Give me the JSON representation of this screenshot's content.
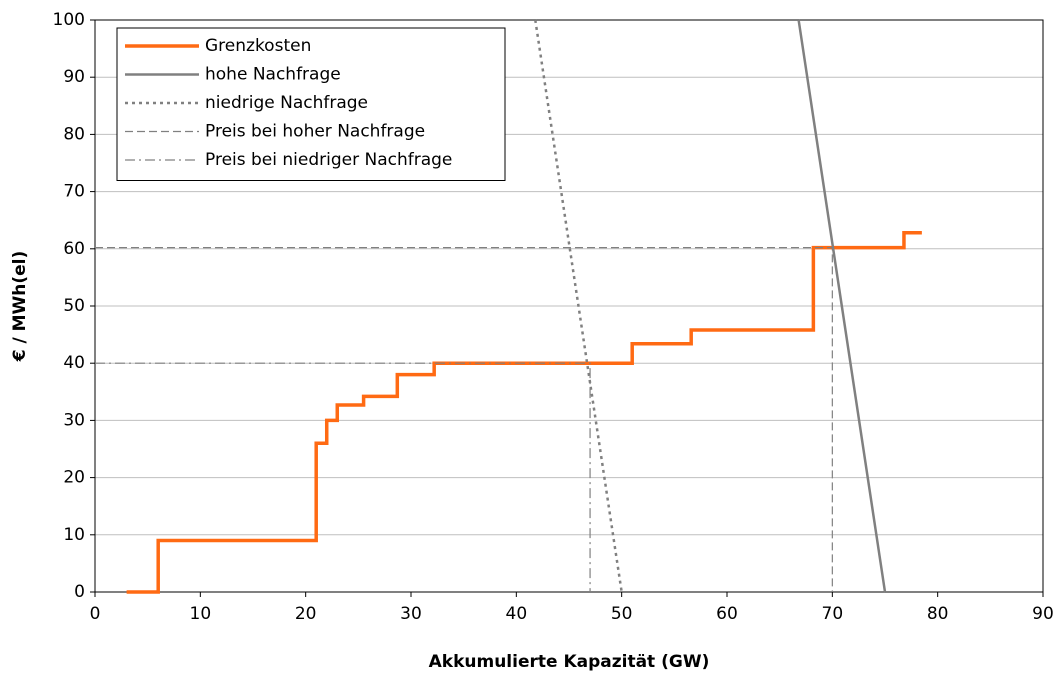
{
  "chart_data": {
    "type": "line",
    "x_label": "Akkumulierte Kapazität (GW)",
    "y_label": "€ / MWh(el)",
    "xlim": [
      0,
      90
    ],
    "xticks": [
      0,
      10,
      20,
      30,
      40,
      50,
      60,
      70,
      80,
      90
    ],
    "ylim": [
      0,
      100
    ],
    "yticks": [
      0,
      10,
      20,
      30,
      40,
      50,
      60,
      70,
      80,
      90,
      100
    ],
    "grid": true,
    "legend": "upper left",
    "series": [
      {
        "name": "Grenzkosten",
        "color": "#ff6a13",
        "style": "solid",
        "width": 3.5,
        "x": [
          3,
          6,
          6,
          21,
          21,
          22,
          22,
          23,
          23,
          25.5,
          25.5,
          28.7,
          28.7,
          32.2,
          32.2,
          51,
          51,
          56.6,
          56.6,
          68.2,
          68.2,
          76.8,
          76.8,
          78.5
        ],
        "values": [
          0,
          0,
          9,
          9,
          26,
          26,
          30,
          30,
          32.7,
          32.7,
          34.2,
          34.2,
          38,
          38,
          40,
          40,
          43.4,
          43.4,
          45.8,
          45.8,
          60.2,
          60.2,
          62.8,
          62.8
        ]
      },
      {
        "name": "hohe Nachfrage",
        "color": "#808080",
        "style": "solid",
        "width": 2.5,
        "x": [
          66.8,
          75
        ],
        "values": [
          100,
          0
        ]
      },
      {
        "name": "niedrige Nachfrage",
        "color": "#808080",
        "style": "dotted",
        "width": 2.5,
        "x": [
          41.8,
          50
        ],
        "values": [
          100,
          0
        ]
      },
      {
        "name": "Preis bei hoher Nachfrage",
        "color": "#808080",
        "style": "dashed",
        "width": 1.2,
        "x": [
          0,
          70,
          70
        ],
        "values": [
          60.2,
          60.2,
          0
        ]
      },
      {
        "name": "Preis bei niedriger Nachfrage",
        "color": "#808080",
        "style": "dashdot",
        "width": 1.2,
        "x": [
          0,
          47,
          47
        ],
        "values": [
          40,
          40,
          0
        ]
      }
    ]
  }
}
